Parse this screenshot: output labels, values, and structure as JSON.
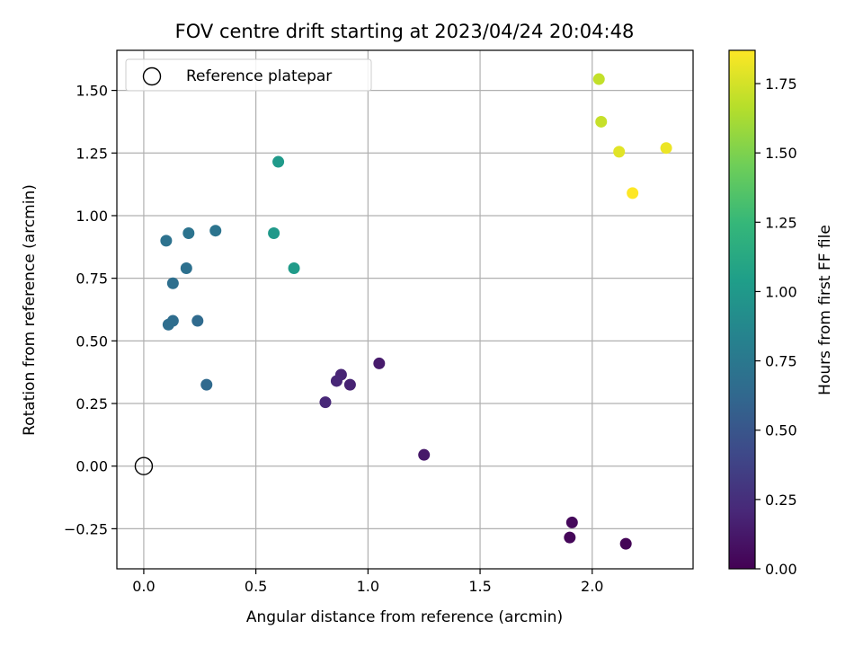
{
  "chart_data": {
    "type": "scatter",
    "title": "FOV centre drift starting at 2023/04/24 20:04:48",
    "xlabel": "Angular distance from reference (arcmin)",
    "ylabel": "Rotation from reference (arcmin)",
    "xlim": [
      -0.12,
      2.45
    ],
    "ylim": [
      -0.41,
      1.66
    ],
    "xticks": [
      0.0,
      0.5,
      1.0,
      1.5,
      2.0
    ],
    "xtick_labels": [
      "0.0",
      "0.5",
      "1.0",
      "1.5",
      "2.0"
    ],
    "yticks": [
      -0.25,
      0.0,
      0.25,
      0.5,
      0.75,
      1.0,
      1.25,
      1.5
    ],
    "ytick_labels": [
      "−0.25",
      "0.00",
      "0.25",
      "0.50",
      "0.75",
      "1.00",
      "1.25",
      "1.50"
    ],
    "grid": true,
    "legend": {
      "position": "top-left",
      "entries": [
        {
          "label": "Reference platepar",
          "marker": "open-circle"
        }
      ]
    },
    "reference_point": {
      "x": 0.0,
      "y": 0.0
    },
    "colorbar": {
      "label": "Hours from first FF file",
      "range": [
        0.0,
        1.87
      ],
      "colormap": "viridis",
      "ticks": [
        0.0,
        0.25,
        0.5,
        0.75,
        1.0,
        1.25,
        1.5,
        1.75
      ],
      "tick_labels": [
        "0.00",
        "0.25",
        "0.50",
        "0.75",
        "1.00",
        "1.25",
        "1.50",
        "1.75"
      ]
    },
    "points": [
      {
        "x": 2.15,
        "y": -0.31,
        "c": 0.02
      },
      {
        "x": 1.9,
        "y": -0.285,
        "c": 0.03
      },
      {
        "x": 1.91,
        "y": -0.225,
        "c": 0.04
      },
      {
        "x": 1.25,
        "y": 0.045,
        "c": 0.12
      },
      {
        "x": 1.05,
        "y": 0.41,
        "c": 0.14
      },
      {
        "x": 0.92,
        "y": 0.325,
        "c": 0.18
      },
      {
        "x": 0.88,
        "y": 0.365,
        "c": 0.19
      },
      {
        "x": 0.86,
        "y": 0.34,
        "c": 0.2
      },
      {
        "x": 0.81,
        "y": 0.255,
        "c": 0.21
      },
      {
        "x": 0.28,
        "y": 0.325,
        "c": 0.64
      },
      {
        "x": 0.24,
        "y": 0.58,
        "c": 0.65
      },
      {
        "x": 0.13,
        "y": 0.58,
        "c": 0.66
      },
      {
        "x": 0.11,
        "y": 0.565,
        "c": 0.67
      },
      {
        "x": 0.13,
        "y": 0.73,
        "c": 0.68
      },
      {
        "x": 0.19,
        "y": 0.79,
        "c": 0.69
      },
      {
        "x": 0.1,
        "y": 0.9,
        "c": 0.7
      },
      {
        "x": 0.2,
        "y": 0.93,
        "c": 0.71
      },
      {
        "x": 0.32,
        "y": 0.94,
        "c": 0.72
      },
      {
        "x": 0.58,
        "y": 0.93,
        "c": 1.0
      },
      {
        "x": 0.6,
        "y": 1.215,
        "c": 1.01
      },
      {
        "x": 0.67,
        "y": 0.79,
        "c": 1.02
      },
      {
        "x": 2.03,
        "y": 1.545,
        "c": 1.7
      },
      {
        "x": 2.04,
        "y": 1.375,
        "c": 1.71
      },
      {
        "x": 2.12,
        "y": 1.255,
        "c": 1.79
      },
      {
        "x": 2.33,
        "y": 1.27,
        "c": 1.82
      },
      {
        "x": 2.18,
        "y": 1.09,
        "c": 1.87
      }
    ]
  }
}
